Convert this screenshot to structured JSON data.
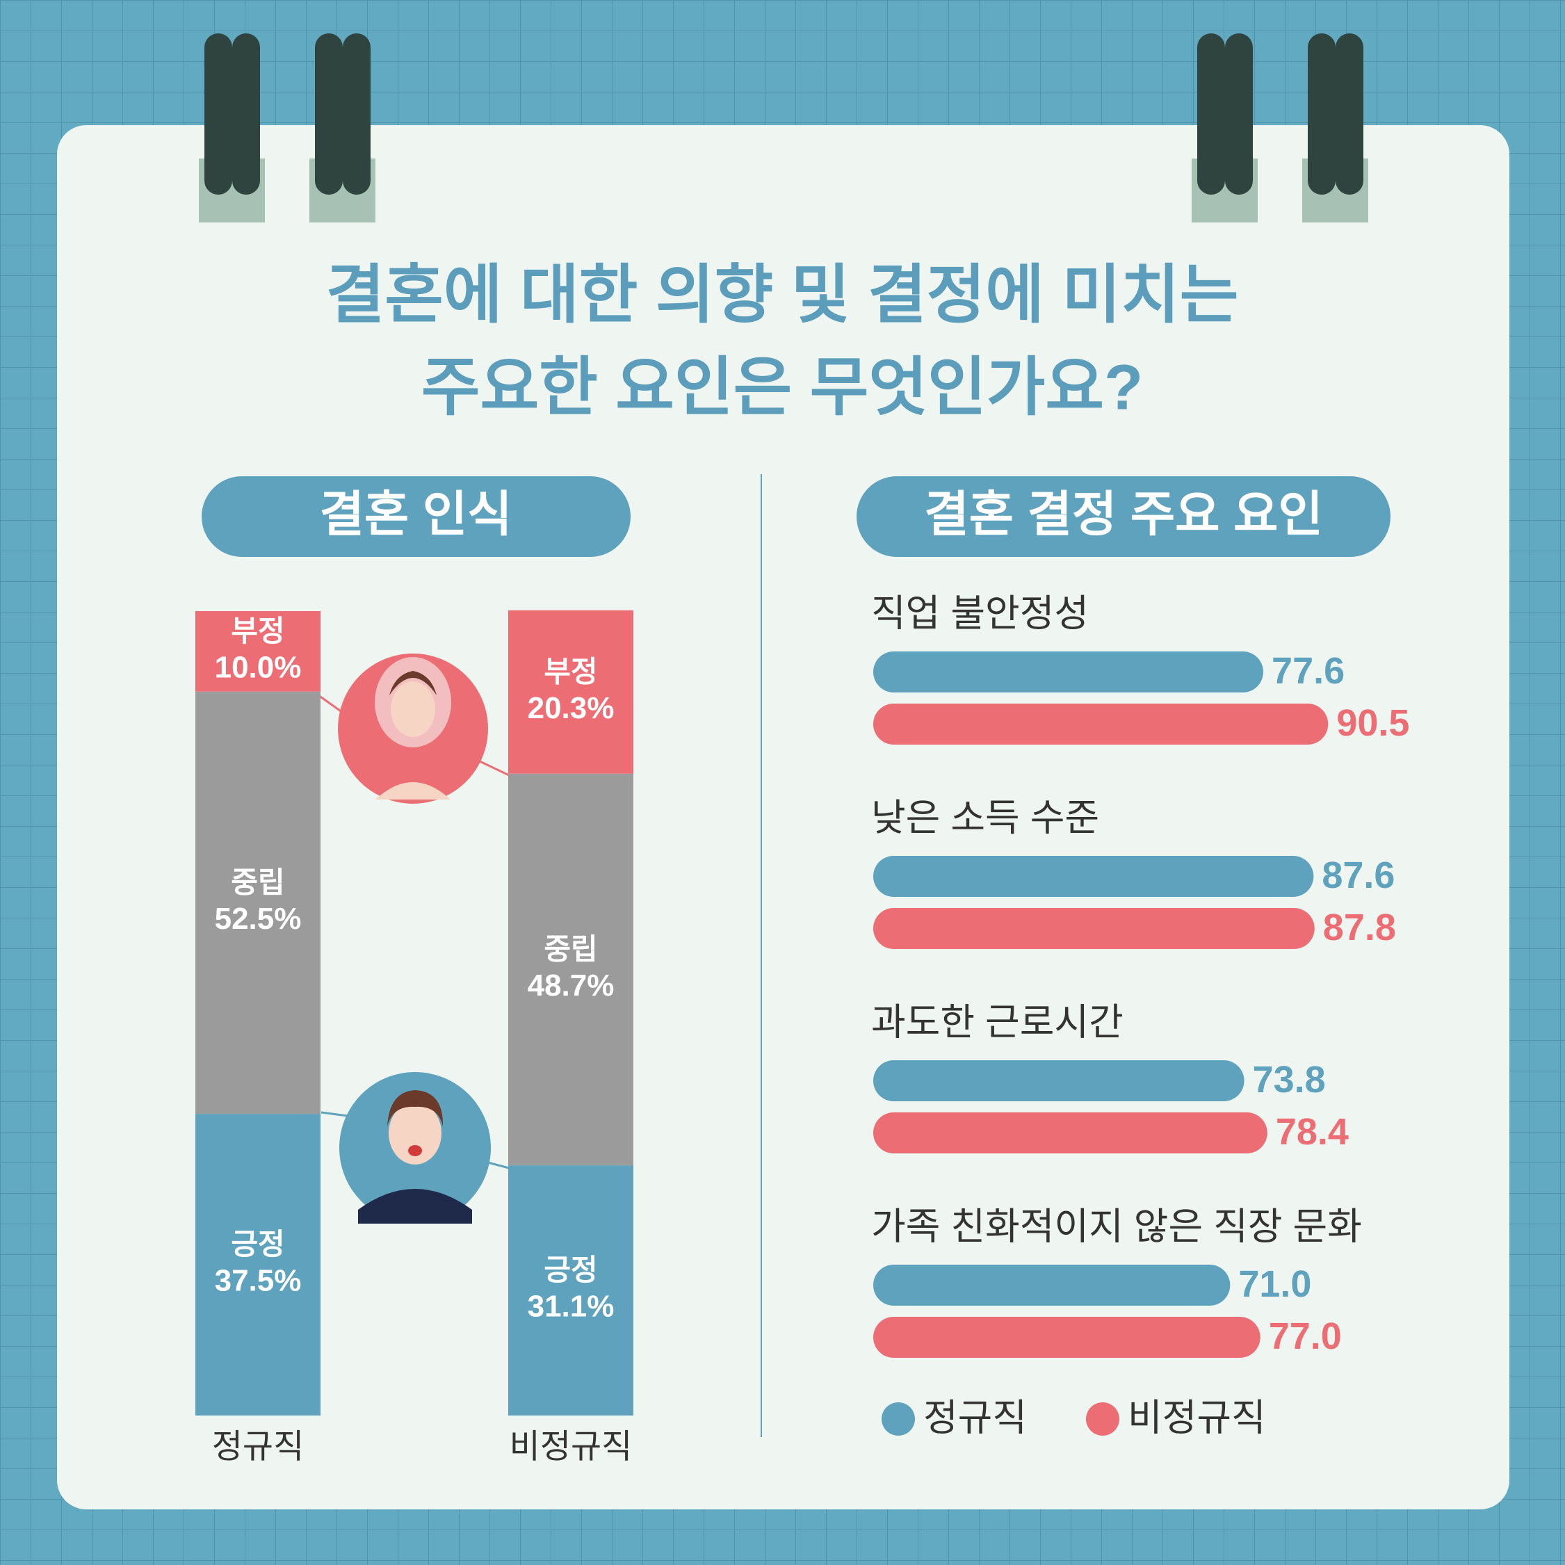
{
  "title": [
    "결혼에 대한 의향 및 결정에 미치는",
    "주요한 요인은 무엇인가요?"
  ],
  "chart_data": [
    {
      "type": "stacked_bar",
      "title": "결혼 인식",
      "categories": [
        "정규직",
        "비정규직"
      ],
      "series": [
        {
          "name": "긍정",
          "color": "#5ea2bd",
          "values": [
            37.5,
            31.1
          ],
          "value_labels": [
            "37.5%",
            "31.1%"
          ]
        },
        {
          "name": "중립",
          "color": "#9b9b9b",
          "values": [
            52.5,
            48.7
          ],
          "value_labels": [
            "52.5%",
            "48.7%"
          ]
        },
        {
          "name": "부정",
          "color": "#ec6e74",
          "values": [
            10.0,
            20.3
          ],
          "value_labels": [
            "10.0%",
            "20.3%"
          ]
        }
      ]
    },
    {
      "type": "hbar",
      "title": "결혼 결정 주요 요인",
      "categories": [
        "직업 불안정성",
        "낮은 소득 수준",
        "과도한 근로시간",
        "가족 친화적이지 않은 직장 문화"
      ],
      "series": [
        {
          "name": "정규직",
          "color": "#5ea2bd",
          "values": [
            77.6,
            87.6,
            73.8,
            71.0
          ],
          "value_labels": [
            "77.6",
            "87.6",
            "73.8",
            "71.0"
          ]
        },
        {
          "name": "비정규직",
          "color": "#ec6e74",
          "values": [
            90.5,
            87.8,
            78.4,
            77.0
          ],
          "value_labels": [
            "90.5",
            "87.8",
            "78.4",
            "77.0"
          ]
        }
      ],
      "legend": "bottom"
    }
  ]
}
